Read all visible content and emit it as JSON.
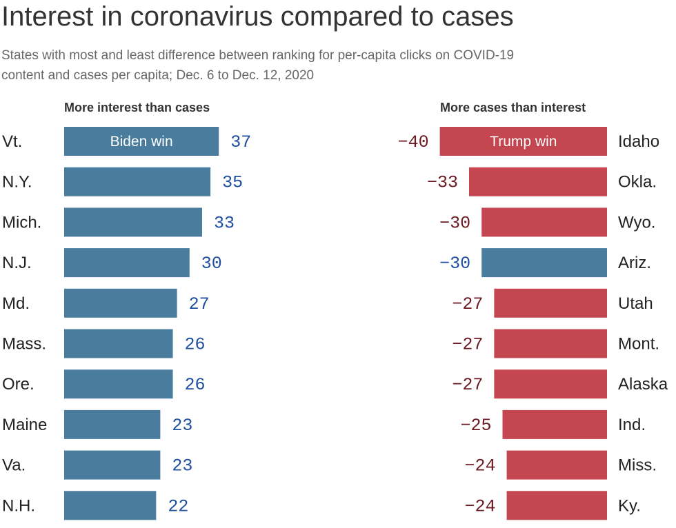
{
  "title": "Interest in coronavirus compared to cases",
  "subtitle": "States with most and least difference between ranking for per-capita clicks on COVID-19 content and cases per capita; Dec. 6 to Dec. 12, 2020",
  "colors": {
    "biden_win": "#4a7c9e",
    "trump_win": "#c44651",
    "positive_label": "#1f4fa0",
    "negative_label": "#6b1a22"
  },
  "chart_data": [
    {
      "type": "bar",
      "title": "More interest than cases",
      "orientation": "horizontal",
      "categories": [
        "Vt.",
        "N.Y.",
        "Mich.",
        "N.J.",
        "Md.",
        "Mass.",
        "Ore.",
        "Maine",
        "Va.",
        "N.H."
      ],
      "values": [
        37,
        35,
        33,
        30,
        27,
        26,
        26,
        23,
        23,
        22
      ],
      "winner": [
        "Biden",
        "Biden",
        "Biden",
        "Biden",
        "Biden",
        "Biden",
        "Biden",
        "Biden",
        "Biden",
        "Biden"
      ],
      "value_labels": [
        "37",
        "35",
        "33",
        "30",
        "27",
        "26",
        "26",
        "23",
        "23",
        "22"
      ],
      "annotations": [
        {
          "category": "Vt.",
          "text": "Biden win"
        }
      ],
      "xlim": [
        0,
        40
      ]
    },
    {
      "type": "bar",
      "title": "More cases than interest",
      "orientation": "horizontal",
      "categories": [
        "Idaho",
        "Okla.",
        "Wyo.",
        "Ariz.",
        "Utah",
        "Mont.",
        "Alaska",
        "Ind.",
        "Miss.",
        "Ky."
      ],
      "values": [
        -40,
        -33,
        -30,
        -30,
        -27,
        -27,
        -27,
        -25,
        -24,
        -24
      ],
      "winner": [
        "Trump",
        "Trump",
        "Trump",
        "Biden",
        "Trump",
        "Trump",
        "Trump",
        "Trump",
        "Trump",
        "Trump"
      ],
      "value_labels": [
        "−40",
        "−33",
        "−30",
        "−30",
        "−27",
        "−27",
        "−27",
        "−25",
        "−24",
        "−24"
      ],
      "annotations": [
        {
          "category": "Idaho",
          "text": "Trump win"
        }
      ],
      "xlim": [
        -40,
        0
      ]
    }
  ]
}
